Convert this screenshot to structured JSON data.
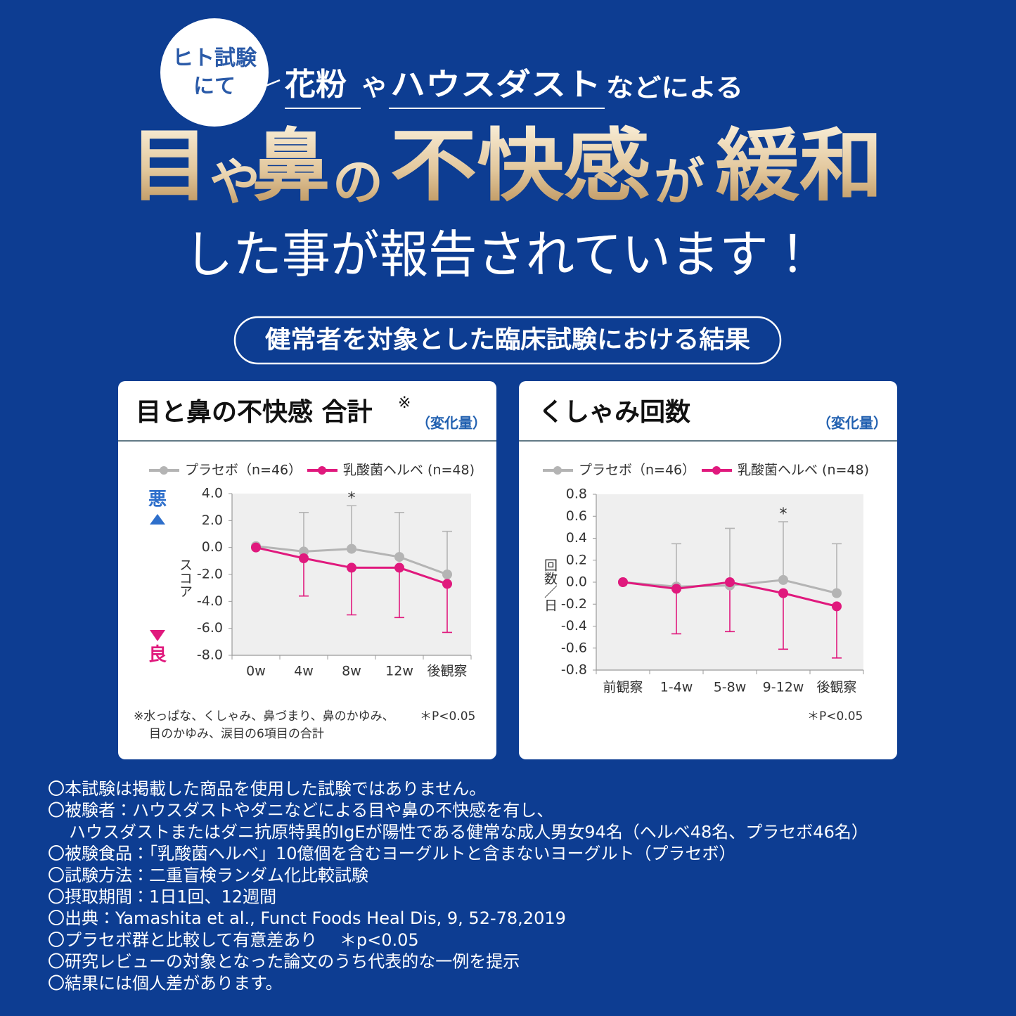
{
  "badge": [
    "ヒト試験",
    "にて"
  ],
  "header": {
    "a": "花粉",
    "b": "や",
    "c": "ハウスダスト",
    "d": "などによる"
  },
  "headline": [
    "目",
    "や",
    "鼻",
    "の",
    "不快感",
    "が",
    "緩和"
  ],
  "subheadline": "した事が報告されています！",
  "pill": "健常者を対象とした臨床試験における結果",
  "chart_data": [
    {
      "type": "line",
      "title": "目と鼻の不快感 合計",
      "title_mark": "※",
      "unit": "（変化量）",
      "ylabel": "スコア",
      "worse": "悪",
      "better": "良",
      "categories": [
        "0w",
        "4w",
        "8w",
        "12w",
        "後観察"
      ],
      "series": [
        {
          "name": "プラセボ（n=46）",
          "color": "#b4b4b4",
          "error_direction": "up",
          "values": [
            0.1,
            -0.3,
            -0.1,
            -0.7,
            -2.0
          ],
          "errors": [
            null,
            2.9,
            3.2,
            3.3,
            3.2
          ]
        },
        {
          "name": "乳酸菌ヘルベ (n=48)",
          "color": "#e0197d",
          "error_direction": "down",
          "values": [
            0,
            -0.8,
            -1.5,
            -1.5,
            -2.7
          ],
          "errors": [
            null,
            2.8,
            3.5,
            3.7,
            3.6
          ]
        }
      ],
      "significance": [
        null,
        null,
        "*",
        null,
        null
      ],
      "ylim": [
        -8,
        4
      ],
      "yticks": [
        {
          "value": -8,
          "label": "-8.0"
        },
        {
          "value": -6,
          "label": "-6.0"
        },
        {
          "value": -4,
          "label": "-4.0"
        },
        {
          "value": -2,
          "label": "-2.0"
        },
        {
          "value": 0,
          "label": "0.0"
        },
        {
          "value": 2,
          "label": "2.0"
        },
        {
          "value": 4,
          "label": "4.0"
        }
      ],
      "note": [
        "※水っぱな、くしゃみ、鼻づまり、鼻のかゆみ、",
        "目のかゆみ、涙目の6項目の合計"
      ],
      "p_note": "＊P<0.05"
    },
    {
      "type": "line",
      "title": "くしゃみ回数",
      "unit": "（変化量）",
      "ylabel": "回数／日",
      "categories": [
        "前観察",
        "1-4w",
        "5-8w",
        "9-12w",
        "後観察"
      ],
      "series": [
        {
          "name": "プラセボ（n=46）",
          "color": "#b4b4b4",
          "error_direction": "up",
          "values": [
            0,
            -0.04,
            -0.03,
            0.02,
            -0.1
          ],
          "errors": [
            null,
            0.39,
            0.52,
            0.53,
            0.45
          ]
        },
        {
          "name": "乳酸菌ヘルベ (n=48)",
          "color": "#e0197d",
          "error_direction": "down",
          "values": [
            0,
            -0.06,
            0.0,
            -0.1,
            -0.22
          ],
          "errors": [
            null,
            0.41,
            0.45,
            0.51,
            0.47
          ]
        }
      ],
      "significance": [
        null,
        null,
        null,
        "*",
        null
      ],
      "ylim": [
        -0.8,
        0.8
      ],
      "yticks": [
        -0.8,
        -0.6,
        -0.4,
        -0.2,
        {
          "value": 0,
          "label": "0.0"
        },
        0.2,
        0.4,
        0.6,
        0.8
      ],
      "p_note": "＊P<0.05"
    }
  ],
  "footnotes": [
    "〇本試験は掲載した商品を使用した試験ではありません。",
    "〇被験者：ハウスダストやダニなどによる目や鼻の不快感を有し、",
    "ハウスダストまたはダニ抗原特異的IgEが陽性である健常な成人男女94名（ヘルベ48名、プラセボ46名）",
    "〇被験食品：「乳酸菌ヘルベ」10億個を含むヨーグルトと含まないヨーグルト（プラセボ）",
    "〇試験方法：二重盲検ランダム化比較試験",
    "〇摂取期間：1日1回、12週間",
    "〇出典：Yamashita et al., Funct Foods Heal Dis, 9, 52-78,2019",
    "〇プラセボ群と比較して有意差あり　 ＊p<0.05",
    "〇研究レビューの対象となった論文のうち代表的な一例を提示",
    "〇結果には個人差があります。"
  ]
}
